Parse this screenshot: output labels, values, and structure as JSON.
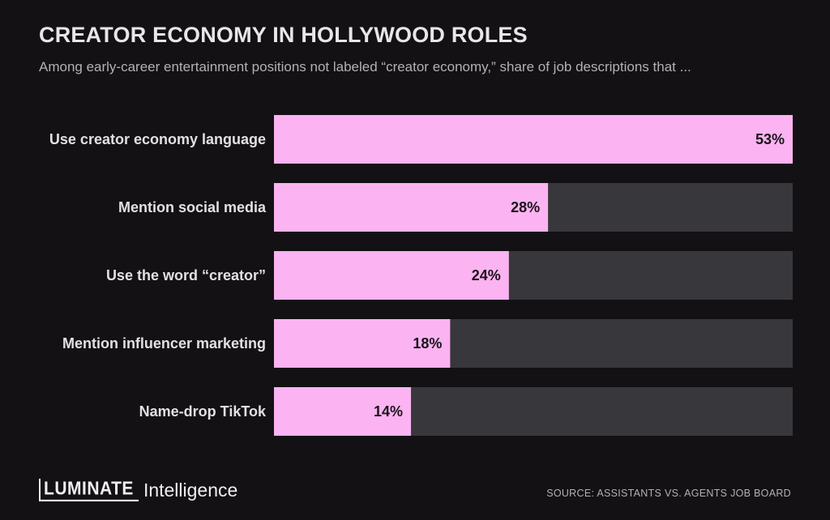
{
  "header": {
    "title": "CREATOR ECONOMY IN HOLLYWOOD ROLES",
    "subtitle": "Among early-career entertainment positions not labeled “creator economy,” share of job descriptions that ..."
  },
  "footer": {
    "logo_mark": "LUMINATE",
    "logo_word": "Intelligence",
    "source": "SOURCE: ASSISTANTS VS. AGENTS JOB BOARD"
  },
  "colors": {
    "background": "#131114",
    "bar_fill": "#fbb3f1",
    "bar_track": "#38373b",
    "label_text": "#e3dfe5",
    "value_text": "#19151a"
  },
  "chart_data": {
    "type": "bar",
    "orientation": "horizontal",
    "categories": [
      "Use creator economy language",
      "Mention social media",
      "Use the word “creator”",
      "Mention influencer marketing",
      "Name-drop TikTok"
    ],
    "values": [
      53,
      28,
      24,
      18,
      14
    ],
    "value_labels": [
      "53%",
      "28%",
      "24%",
      "18%",
      "14%"
    ],
    "xlim": [
      0,
      53
    ],
    "grid": false,
    "legend": "none"
  }
}
